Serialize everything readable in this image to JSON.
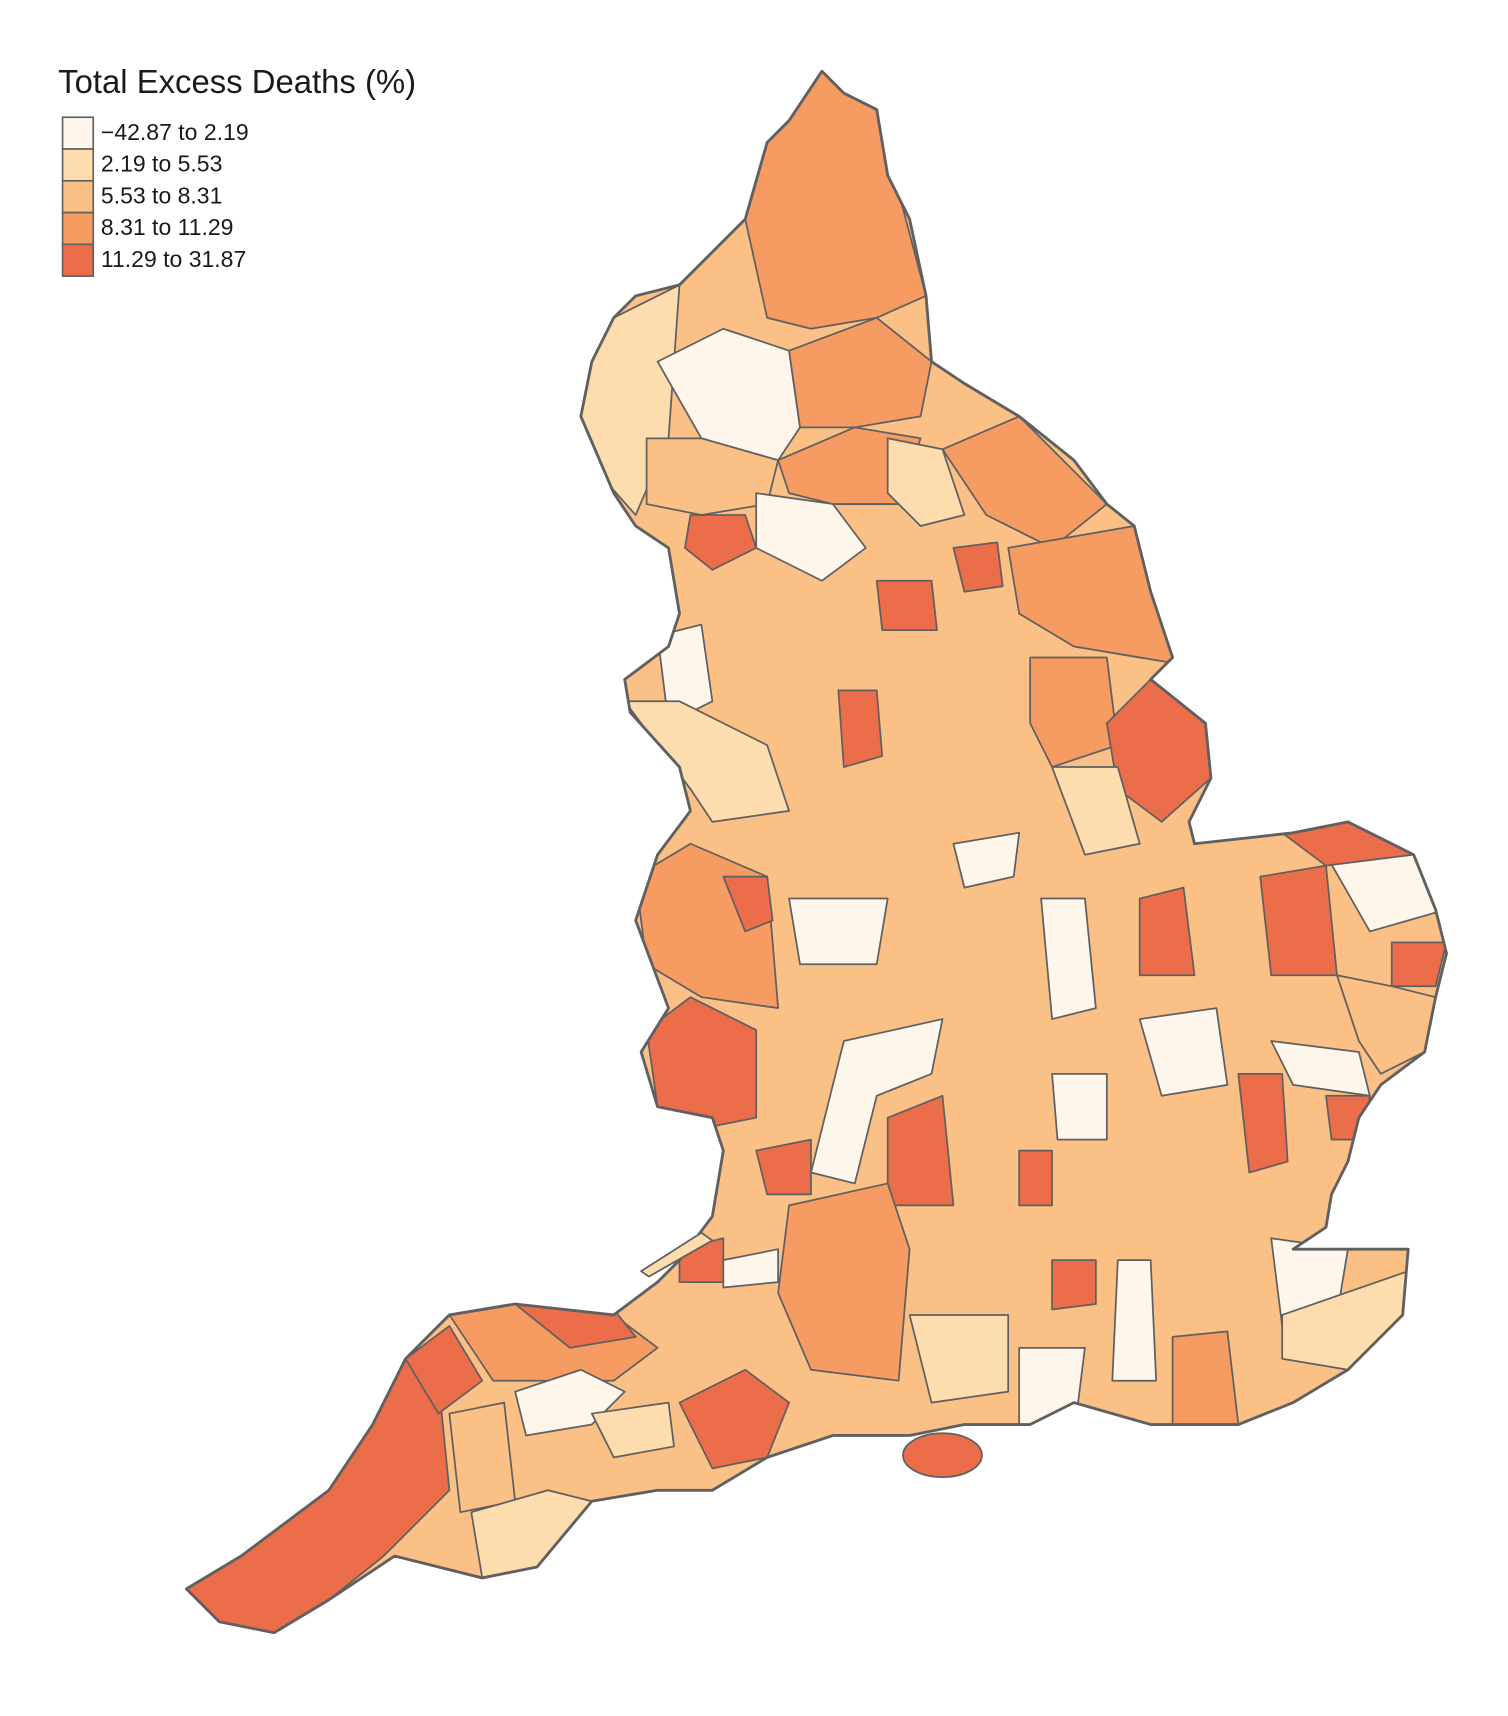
{
  "legend": {
    "title": "Total Excess Deaths (%)",
    "items": [
      {
        "label": "−42.87 to 2.19",
        "color": "#fef6eb"
      },
      {
        "label": "2.19 to 5.53",
        "color": "#fddcae"
      },
      {
        "label": "5.53 to 8.31",
        "color": "#fbc085"
      },
      {
        "label": "8.31 to 11.29",
        "color": "#f69b61"
      },
      {
        "label": "11.29 to 31.87",
        "color": "#ec6d4a"
      }
    ]
  }
}
